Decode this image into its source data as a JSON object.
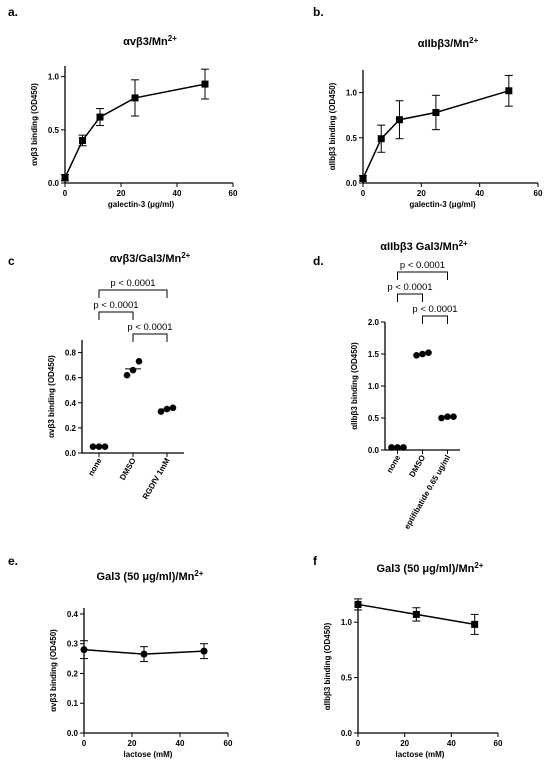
{
  "chart_data": [
    {
      "letter": "a.",
      "type": "line",
      "title": "αvβ3/Mn",
      "title_sup": "2+",
      "xlabel": "galectin-3 (μg/ml)",
      "ylabel": "αvβ3 binding (OD450)",
      "x": [
        0,
        6.25,
        12.5,
        25,
        50
      ],
      "y": [
        0.05,
        0.4,
        0.62,
        0.8,
        0.93
      ],
      "err": [
        0.03,
        0.05,
        0.08,
        0.17,
        0.14
      ],
      "xlim": [
        0,
        60
      ],
      "ylim": [
        0,
        1.1
      ],
      "xticks": [
        0,
        20,
        40,
        60
      ],
      "yticks": [
        0,
        0.5,
        1.0
      ],
      "yticklabels": [
        "0.0",
        "0.5",
        "1.0"
      ],
      "marker": "square"
    },
    {
      "letter": "b.",
      "type": "line",
      "title": "αIIbβ3/Mn",
      "title_sup": "2+",
      "xlabel": "galectin-3 (μg/ml)",
      "ylabel": "αIIbβ3 binding (OD450)",
      "x": [
        0,
        6.25,
        12.5,
        25,
        50
      ],
      "y": [
        0.05,
        0.49,
        0.7,
        0.78,
        1.02
      ],
      "err": [
        0.03,
        0.15,
        0.21,
        0.19,
        0.17
      ],
      "xlim": [
        0,
        60
      ],
      "ylim": [
        0,
        1.25
      ],
      "xticks": [
        0,
        20,
        40,
        60
      ],
      "yticks": [
        0,
        0.5,
        1.0
      ],
      "yticklabels": [
        "0.0",
        "0.5",
        "1.0"
      ],
      "marker": "square"
    },
    {
      "letter": "c",
      "type": "scatter",
      "title": "αvβ3/Gal3/Mn",
      "title_sup": "2+",
      "ylabel": "αvβ3 binding (OD450)",
      "categories": [
        "none",
        "DMSO",
        "RGDfV 1mM"
      ],
      "points": [
        [
          0.05,
          0.05,
          0.05
        ],
        [
          0.62,
          0.66,
          0.73
        ],
        [
          0.33,
          0.35,
          0.36
        ]
      ],
      "means": [
        0.05,
        0.67,
        0.35
      ],
      "ylim": [
        0,
        0.9
      ],
      "yticks": [
        0,
        0.2,
        0.4,
        0.6,
        0.8
      ],
      "yticklabels": [
        "0.0",
        "0.2",
        "0.4",
        "0.6",
        "0.8"
      ],
      "comparisons": [
        {
          "from": 0,
          "to": 2,
          "label": "p < 0.0001"
        },
        {
          "from": 0,
          "to": 1,
          "label": "p < 0.0001"
        },
        {
          "from": 1,
          "to": 2,
          "label": "p < 0.0001"
        }
      ]
    },
    {
      "letter": "d.",
      "type": "scatter",
      "title": "αIIbβ3 Gal3/Mn",
      "title_sup": "2+",
      "ylabel": "αIIbβ3 binding (OD450)",
      "categories": [
        "none",
        "DMSO",
        "eptifibatide 0.65 ug/ml"
      ],
      "points": [
        [
          0.04,
          0.04,
          0.04
        ],
        [
          1.48,
          1.5,
          1.52
        ],
        [
          0.5,
          0.52,
          0.52
        ]
      ],
      "means": [
        0.04,
        1.5,
        0.51
      ],
      "ylim": [
        0,
        2.0
      ],
      "yticks": [
        0,
        0.5,
        1.0,
        1.5,
        2.0
      ],
      "yticklabels": [
        "0.0",
        "0.5",
        "1.0",
        "1.5",
        "2.0"
      ],
      "comparisons": [
        {
          "from": 0,
          "to": 2,
          "label": "p < 0.0001"
        },
        {
          "from": 0,
          "to": 1,
          "label": "p < 0.0001"
        },
        {
          "from": 1,
          "to": 2,
          "label": "p < 0.0001"
        }
      ]
    },
    {
      "letter": "e.",
      "type": "line",
      "title": "Gal3 (50 μg/ml)/Mn",
      "title_sup": "2+",
      "xlabel": "lactose (mM)",
      "ylabel": "αvβ3 binding (OD450)",
      "x": [
        0,
        25,
        50
      ],
      "y": [
        0.28,
        0.265,
        0.275
      ],
      "err": [
        0.03,
        0.025,
        0.025
      ],
      "xlim": [
        0,
        60
      ],
      "ylim": [
        0,
        0.42
      ],
      "xticks": [
        0,
        20,
        40,
        60
      ],
      "yticks": [
        0,
        0.1,
        0.2,
        0.3,
        0.4
      ],
      "yticklabels": [
        "0.0",
        "0.1",
        "0.2",
        "0.3",
        "0.4"
      ],
      "marker": "circle"
    },
    {
      "letter": "f",
      "type": "line",
      "title": "Gal3 (50 μg/ml)/Mn",
      "title_sup": "2+",
      "xlabel": "lactose (mM)",
      "ylabel": "αIIbβ3 binding (OD450)",
      "x": [
        0,
        25,
        50
      ],
      "y": [
        1.16,
        1.07,
        0.98
      ],
      "err": [
        0.05,
        0.06,
        0.09
      ],
      "xlim": [
        0,
        60
      ],
      "ylim": [
        0,
        1.2
      ],
      "xticks": [
        0,
        20,
        40,
        60
      ],
      "yticks": [
        0,
        0.5,
        1.0
      ],
      "yticklabels": [
        "0.0",
        "0.5",
        "1.0"
      ],
      "marker": "square"
    }
  ]
}
